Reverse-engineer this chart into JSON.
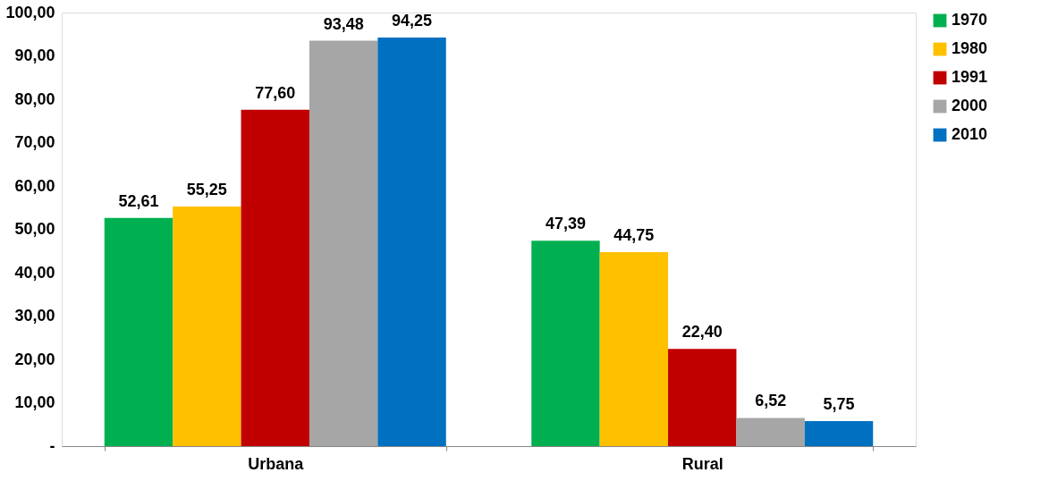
{
  "chart_data": {
    "type": "bar",
    "categories": [
      "Urbana",
      "Rural"
    ],
    "series": [
      {
        "name": "1970",
        "color": "#00b050",
        "values": [
          52.61,
          47.39
        ],
        "value_labels": [
          "52,61",
          "47,39"
        ]
      },
      {
        "name": "1980",
        "color": "#ffc000",
        "values": [
          55.25,
          44.75
        ],
        "value_labels": [
          "55,25",
          "44,75"
        ]
      },
      {
        "name": "1991",
        "color": "#c00000",
        "values": [
          77.6,
          22.4
        ],
        "value_labels": [
          "77,60",
          "22,40"
        ]
      },
      {
        "name": "2000",
        "color": "#a6a6a6",
        "values": [
          93.48,
          6.52
        ],
        "value_labels": [
          "93,48",
          "6,52"
        ]
      },
      {
        "name": "2010",
        "color": "#0070c0",
        "values": [
          94.25,
          5.75
        ],
        "value_labels": [
          "94,25",
          "5,75"
        ]
      }
    ],
    "ylim": [
      0,
      100
    ],
    "yticks": [
      {
        "value": 0,
        "label": "-"
      },
      {
        "value": 10,
        "label": "10,00"
      },
      {
        "value": 20,
        "label": "20,00"
      },
      {
        "value": 30,
        "label": "30,00"
      },
      {
        "value": 40,
        "label": "40,00"
      },
      {
        "value": 50,
        "label": "50,00"
      },
      {
        "value": 60,
        "label": "60,00"
      },
      {
        "value": 70,
        "label": "70,00"
      },
      {
        "value": 80,
        "label": "80,00"
      },
      {
        "value": 90,
        "label": "90,00"
      },
      {
        "value": 100,
        "label": "100,00"
      }
    ],
    "grid": false,
    "legend": "right"
  }
}
